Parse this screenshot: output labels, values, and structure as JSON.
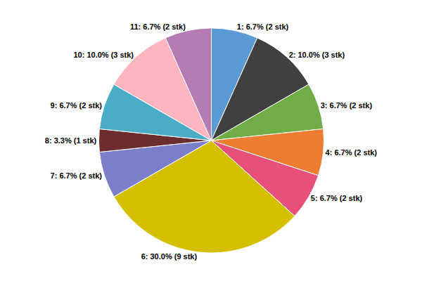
{
  "chart_data": {
    "type": "pie",
    "categories": [
      "1: 6.7% (2 stk)",
      "2: 10.0% (3 stk)",
      "3: 6.7% (2 stk)",
      "4: 6.7% (2 stk)",
      "5: 6.7% (2 stk)",
      "6: 30.0% (9 stk)",
      "7: 6.7% (2 stk)",
      "8: 3.3% (1 stk)",
      "9: 6.7% (2 stk)",
      "10: 10.0% (3 stk)",
      "11: 6.7% (2 stk)"
    ],
    "values": [
      6.7,
      10.0,
      6.7,
      6.7,
      6.7,
      30.0,
      6.7,
      3.3,
      6.7,
      10.0,
      6.7
    ],
    "colors": [
      "#5B9BD5",
      "#404040",
      "#70AD47",
      "#ED7D31",
      "#E8507A",
      "#D4C000",
      "#7B7EC8",
      "#6B2D2D",
      "#4BACC6",
      "#FFB6C1",
      "#B57BB5"
    ]
  }
}
